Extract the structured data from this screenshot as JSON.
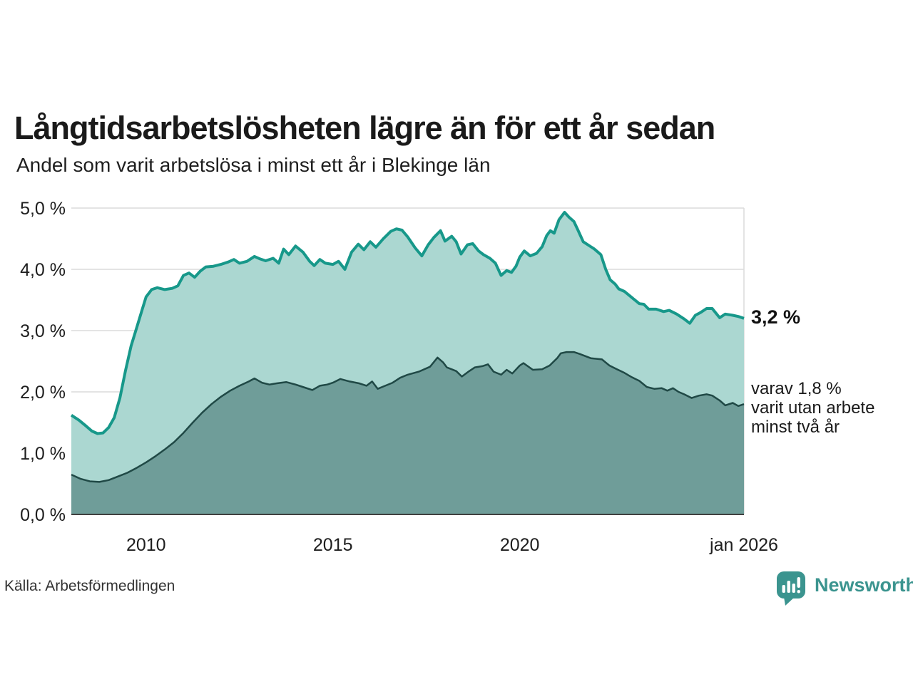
{
  "header": {
    "title": "Långtidsarbetslösheten lägre än för ett år sedan",
    "subtitle": "Andel som varit arbetslösa i minst ett år i Blekinge län"
  },
  "annotations": {
    "latest_value": "3,2 %",
    "note_lines": [
      "varav 1,8 %",
      "varit utan arbete",
      "minst två år"
    ]
  },
  "footer": {
    "source": "Källa: Arbetsförmedlingen",
    "brand": "Newsworthy",
    "brand_icon": "speech-bubble-bar-chart-icon"
  },
  "colors": {
    "accent_teal_line": "#17988a",
    "light_area_fill": "#abd7d1",
    "dark_area_line": "#204946",
    "dark_area_fill": "#6f9d99",
    "gridline": "#dcdcdc",
    "zero_axis": "#3f3f3f",
    "brand_teal": "#3b948f",
    "text": "#1a1a1a"
  },
  "chart_data": {
    "type": "area",
    "title": "Långtidsarbetslösheten lägre än för ett år sedan",
    "subtitle": "Andel som varit arbetslösa i minst ett år i Blekinge län",
    "x_unit": "decimal_year",
    "x_range": [
      2008,
      2026
    ],
    "y_range": [
      0,
      5
    ],
    "grid": "horizontal",
    "y_ticks": [
      {
        "value": 0,
        "label": "0,0 %"
      },
      {
        "value": 1,
        "label": "1,0 %"
      },
      {
        "value": 2,
        "label": "2,0 %"
      },
      {
        "value": 3,
        "label": "3,0 %"
      },
      {
        "value": 4,
        "label": "4,0 %"
      },
      {
        "value": 5,
        "label": "5,0 %"
      }
    ],
    "x_ticks": [
      {
        "value": 2010,
        "label": "2010"
      },
      {
        "value": 2015,
        "label": "2015"
      },
      {
        "value": 2020,
        "label": "2020"
      },
      {
        "value": 2026,
        "label": "jan 2026",
        "edge_gridline": true
      }
    ],
    "series": [
      {
        "name": "Andel arbetslösa minst ett år",
        "latest_label": "3,2 %",
        "line_color": "#17988a",
        "fill_color": "#abd7d1",
        "line_width": 4,
        "points": [
          [
            2008.0,
            1.62
          ],
          [
            2008.2,
            1.54
          ],
          [
            2008.4,
            1.44
          ],
          [
            2008.55,
            1.36
          ],
          [
            2008.7,
            1.32
          ],
          [
            2008.85,
            1.33
          ],
          [
            2009.0,
            1.42
          ],
          [
            2009.15,
            1.58
          ],
          [
            2009.3,
            1.9
          ],
          [
            2009.45,
            2.35
          ],
          [
            2009.6,
            2.75
          ],
          [
            2009.75,
            3.05
          ],
          [
            2009.9,
            3.35
          ],
          [
            2010.0,
            3.55
          ],
          [
            2010.15,
            3.67
          ],
          [
            2010.3,
            3.7
          ],
          [
            2010.5,
            3.67
          ],
          [
            2010.7,
            3.69
          ],
          [
            2010.85,
            3.73
          ],
          [
            2011.0,
            3.9
          ],
          [
            2011.15,
            3.94
          ],
          [
            2011.3,
            3.87
          ],
          [
            2011.45,
            3.97
          ],
          [
            2011.6,
            4.04
          ],
          [
            2011.8,
            4.05
          ],
          [
            2012.0,
            4.08
          ],
          [
            2012.2,
            4.12
          ],
          [
            2012.35,
            4.16
          ],
          [
            2012.5,
            4.1
          ],
          [
            2012.7,
            4.13
          ],
          [
            2012.9,
            4.21
          ],
          [
            2013.05,
            4.17
          ],
          [
            2013.2,
            4.14
          ],
          [
            2013.4,
            4.18
          ],
          [
            2013.55,
            4.1
          ],
          [
            2013.68,
            4.33
          ],
          [
            2013.82,
            4.24
          ],
          [
            2014.0,
            4.38
          ],
          [
            2014.2,
            4.28
          ],
          [
            2014.38,
            4.13
          ],
          [
            2014.5,
            4.06
          ],
          [
            2014.65,
            4.16
          ],
          [
            2014.8,
            4.1
          ],
          [
            2015.0,
            4.08
          ],
          [
            2015.15,
            4.13
          ],
          [
            2015.32,
            4.0
          ],
          [
            2015.5,
            4.28
          ],
          [
            2015.68,
            4.41
          ],
          [
            2015.83,
            4.32
          ],
          [
            2016.0,
            4.45
          ],
          [
            2016.15,
            4.36
          ],
          [
            2016.35,
            4.5
          ],
          [
            2016.55,
            4.62
          ],
          [
            2016.7,
            4.66
          ],
          [
            2016.85,
            4.64
          ],
          [
            2017.0,
            4.53
          ],
          [
            2017.2,
            4.35
          ],
          [
            2017.38,
            4.22
          ],
          [
            2017.55,
            4.4
          ],
          [
            2017.7,
            4.52
          ],
          [
            2017.88,
            4.63
          ],
          [
            2018.0,
            4.46
          ],
          [
            2018.18,
            4.54
          ],
          [
            2018.3,
            4.45
          ],
          [
            2018.43,
            4.25
          ],
          [
            2018.6,
            4.4
          ],
          [
            2018.74,
            4.42
          ],
          [
            2018.9,
            4.3
          ],
          [
            2019.03,
            4.24
          ],
          [
            2019.2,
            4.18
          ],
          [
            2019.35,
            4.1
          ],
          [
            2019.5,
            3.9
          ],
          [
            2019.65,
            3.98
          ],
          [
            2019.78,
            3.95
          ],
          [
            2019.9,
            4.05
          ],
          [
            2020.0,
            4.2
          ],
          [
            2020.12,
            4.3
          ],
          [
            2020.28,
            4.22
          ],
          [
            2020.45,
            4.26
          ],
          [
            2020.6,
            4.37
          ],
          [
            2020.72,
            4.55
          ],
          [
            2020.82,
            4.63
          ],
          [
            2020.92,
            4.59
          ],
          [
            2021.05,
            4.81
          ],
          [
            2021.2,
            4.93
          ],
          [
            2021.32,
            4.85
          ],
          [
            2021.45,
            4.78
          ],
          [
            2021.55,
            4.65
          ],
          [
            2021.7,
            4.45
          ],
          [
            2021.85,
            4.39
          ],
          [
            2022.0,
            4.33
          ],
          [
            2022.17,
            4.24
          ],
          [
            2022.3,
            4.0
          ],
          [
            2022.42,
            3.83
          ],
          [
            2022.55,
            3.76
          ],
          [
            2022.65,
            3.68
          ],
          [
            2022.8,
            3.64
          ],
          [
            2023.0,
            3.54
          ],
          [
            2023.2,
            3.44
          ],
          [
            2023.32,
            3.43
          ],
          [
            2023.45,
            3.35
          ],
          [
            2023.65,
            3.35
          ],
          [
            2023.85,
            3.31
          ],
          [
            2024.0,
            3.33
          ],
          [
            2024.2,
            3.27
          ],
          [
            2024.4,
            3.19
          ],
          [
            2024.55,
            3.12
          ],
          [
            2024.7,
            3.25
          ],
          [
            2024.85,
            3.3
          ],
          [
            2025.0,
            3.36
          ],
          [
            2025.15,
            3.36
          ],
          [
            2025.35,
            3.21
          ],
          [
            2025.5,
            3.27
          ],
          [
            2025.7,
            3.25
          ],
          [
            2025.85,
            3.23
          ],
          [
            2026.0,
            3.2
          ]
        ]
      },
      {
        "name": "varav utan arbete minst två år",
        "latest_label": "1,8 %",
        "line_color": "#204946",
        "fill_color": "#6f9d99",
        "line_width": 2.5,
        "points": [
          [
            2008.0,
            0.65
          ],
          [
            2008.25,
            0.58
          ],
          [
            2008.5,
            0.54
          ],
          [
            2008.75,
            0.53
          ],
          [
            2009.0,
            0.56
          ],
          [
            2009.25,
            0.62
          ],
          [
            2009.5,
            0.68
          ],
          [
            2009.75,
            0.76
          ],
          [
            2010.0,
            0.85
          ],
          [
            2010.25,
            0.95
          ],
          [
            2010.5,
            1.06
          ],
          [
            2010.75,
            1.18
          ],
          [
            2011.0,
            1.33
          ],
          [
            2011.25,
            1.5
          ],
          [
            2011.5,
            1.66
          ],
          [
            2011.75,
            1.8
          ],
          [
            2012.0,
            1.92
          ],
          [
            2012.25,
            2.02
          ],
          [
            2012.5,
            2.1
          ],
          [
            2012.75,
            2.17
          ],
          [
            2012.9,
            2.22
          ],
          [
            2013.1,
            2.15
          ],
          [
            2013.3,
            2.12
          ],
          [
            2013.5,
            2.14
          ],
          [
            2013.75,
            2.16
          ],
          [
            2014.0,
            2.12
          ],
          [
            2014.25,
            2.07
          ],
          [
            2014.45,
            2.03
          ],
          [
            2014.65,
            2.1
          ],
          [
            2014.85,
            2.12
          ],
          [
            2015.0,
            2.15
          ],
          [
            2015.2,
            2.21
          ],
          [
            2015.45,
            2.17
          ],
          [
            2015.7,
            2.14
          ],
          [
            2015.9,
            2.1
          ],
          [
            2016.05,
            2.17
          ],
          [
            2016.2,
            2.05
          ],
          [
            2016.4,
            2.1
          ],
          [
            2016.6,
            2.15
          ],
          [
            2016.8,
            2.23
          ],
          [
            2017.0,
            2.28
          ],
          [
            2017.3,
            2.33
          ],
          [
            2017.6,
            2.41
          ],
          [
            2017.8,
            2.56
          ],
          [
            2017.95,
            2.48
          ],
          [
            2018.05,
            2.4
          ],
          [
            2018.3,
            2.34
          ],
          [
            2018.45,
            2.25
          ],
          [
            2018.65,
            2.34
          ],
          [
            2018.8,
            2.4
          ],
          [
            2019.0,
            2.42
          ],
          [
            2019.15,
            2.45
          ],
          [
            2019.3,
            2.33
          ],
          [
            2019.5,
            2.28
          ],
          [
            2019.65,
            2.36
          ],
          [
            2019.8,
            2.3
          ],
          [
            2020.0,
            2.43
          ],
          [
            2020.1,
            2.47
          ],
          [
            2020.35,
            2.36
          ],
          [
            2020.6,
            2.37
          ],
          [
            2020.8,
            2.43
          ],
          [
            2021.0,
            2.55
          ],
          [
            2021.1,
            2.63
          ],
          [
            2021.25,
            2.65
          ],
          [
            2021.45,
            2.65
          ],
          [
            2021.6,
            2.62
          ],
          [
            2021.9,
            2.55
          ],
          [
            2022.2,
            2.53
          ],
          [
            2022.4,
            2.43
          ],
          [
            2022.6,
            2.37
          ],
          [
            2022.8,
            2.31
          ],
          [
            2023.0,
            2.24
          ],
          [
            2023.2,
            2.18
          ],
          [
            2023.4,
            2.08
          ],
          [
            2023.6,
            2.05
          ],
          [
            2023.8,
            2.06
          ],
          [
            2023.95,
            2.02
          ],
          [
            2024.1,
            2.06
          ],
          [
            2024.25,
            2.0
          ],
          [
            2024.4,
            1.96
          ],
          [
            2024.6,
            1.9
          ],
          [
            2024.8,
            1.94
          ],
          [
            2025.0,
            1.96
          ],
          [
            2025.15,
            1.94
          ],
          [
            2025.35,
            1.86
          ],
          [
            2025.5,
            1.78
          ],
          [
            2025.7,
            1.82
          ],
          [
            2025.85,
            1.77
          ],
          [
            2026.0,
            1.8
          ]
        ]
      }
    ]
  }
}
